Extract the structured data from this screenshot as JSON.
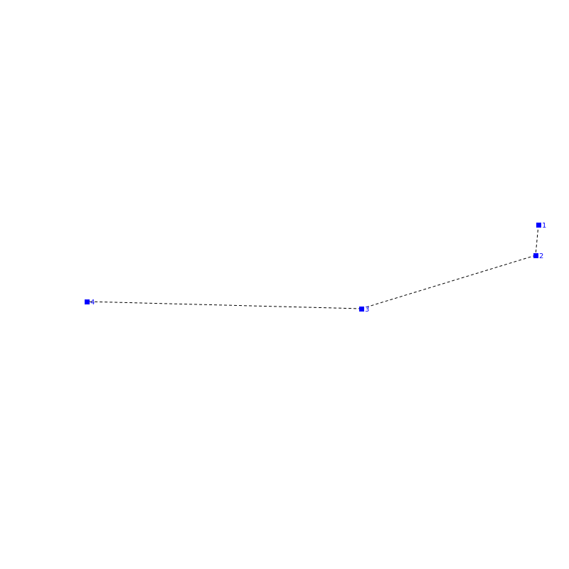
{
  "diagram": {
    "node_color": "#0000ff",
    "edge_color": "#000000",
    "edge_style": "dashed",
    "nodes": [
      {
        "label": "1"
      },
      {
        "label": "2"
      },
      {
        "label": "3"
      },
      {
        "label": "4"
      }
    ],
    "edges": [
      [
        "1",
        "2"
      ],
      [
        "2",
        "3"
      ],
      [
        "3",
        "4"
      ]
    ]
  }
}
